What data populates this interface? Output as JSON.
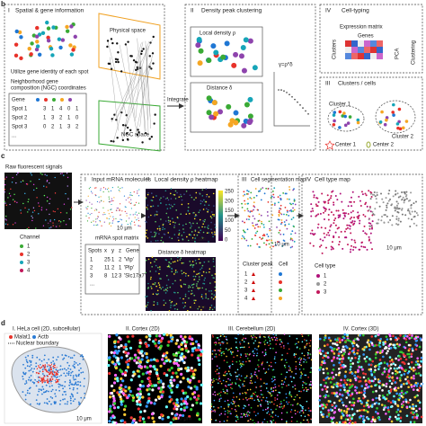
{
  "panel_b": {
    "label": "b",
    "p1": {
      "numeral": "I",
      "title": "Spatial & gene information",
      "physical": "Physical space",
      "utilize": "Utilize gene identity of each spot",
      "ngc_line1": "Neighborhood gene",
      "ngc_line2": "composition (NGC) coordinates",
      "ngc_space": "NGC space",
      "table": {
        "header": "Gene",
        "rows": [
          [
            "Spot 1",
            "3",
            "1",
            "4",
            "0",
            "1"
          ],
          [
            "Spot 2",
            "1",
            "3",
            "2",
            "1",
            "0"
          ],
          [
            "Spot 3",
            "0",
            "2",
            "1",
            "3",
            "2"
          ],
          [
            "..."
          ]
        ]
      }
    },
    "integrate": "Integrate",
    "p2": {
      "numeral": "II",
      "title": "Density peak clustering",
      "density": "Local density ρ",
      "distance": "Distance δ",
      "gamma": "γ=ρ*δ"
    },
    "p4": {
      "numeral": "IV",
      "title": "Cell-typing",
      "matrix": "Expression matrix",
      "genes": "Genes",
      "clusters": "Clusters",
      "pca": "PCA",
      "clustering": "Clustering"
    },
    "p3": {
      "numeral": "III",
      "title": "Clusters / cells",
      "cluster1": "Cluster 1",
      "cluster2": "Cluster 2",
      "center1": "Center 1",
      "center2": "Center 2"
    }
  },
  "panel_c": {
    "label": "c",
    "raw": "Raw fluorescent signals",
    "scale": "10 μm",
    "channel": "Channel",
    "channels": [
      "1",
      "2",
      "3",
      "4"
    ],
    "p1": {
      "numeral": "I",
      "title": "Input mRNA molecules",
      "matrix": "mRNA spot matrix",
      "table": {
        "header": [
          "Spots",
          "x",
          "y",
          "z",
          "Gene"
        ],
        "rows": [
          [
            "1",
            "25",
            "1",
            "2",
            "'Vip'"
          ],
          [
            "2",
            "11",
            "2",
            "1",
            "'Plp'"
          ],
          [
            "3",
            "8",
            "12",
            "3",
            "'Slc17a7'"
          ],
          [
            "..."
          ]
        ]
      }
    },
    "p2": {
      "numeral": "II",
      "title": "Local density ρ heatmap",
      "colorbar": [
        "250",
        "200",
        "150",
        "100",
        "50",
        "0"
      ],
      "distance": "Distance δ heatmap"
    },
    "p3": {
      "numeral": "III",
      "title": "Cell segmentation map",
      "peak": "Cluster peak",
      "cell": "Cell",
      "items": [
        "1",
        "2",
        "3",
        "4"
      ]
    },
    "p4": {
      "numeral": "IV",
      "title": "Cell type map",
      "celltype": "Cell type",
      "items": [
        "1",
        "2",
        "3"
      ]
    }
  },
  "panel_d": {
    "label": "d",
    "p1": "I. HeLa cell (2D, subcellular)",
    "malat": "Malat1",
    "actb": "Actb",
    "nuclear": "Nuclear boundary",
    "p2": "II. Cortex (2D)",
    "p3": "III. Cerebellum (2D)",
    "p4": "IV. Cortex (3D)"
  }
}
